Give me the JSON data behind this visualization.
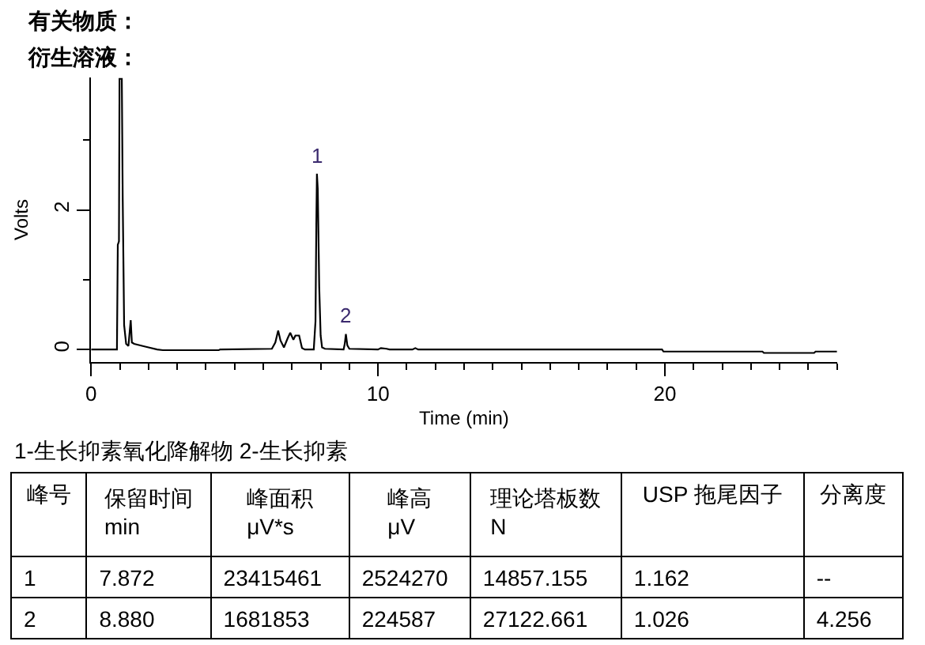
{
  "chart_data": [
    {
      "type": "line",
      "title": "有关物质：",
      "subtitle": "衍生溶液：",
      "xlabel": "Time (min)",
      "ylabel": "Volts",
      "color": "#000000",
      "x": [
        0,
        0.9,
        0.93,
        0.97,
        0.99,
        1.07,
        1.1,
        1.15,
        1.22,
        1.3,
        1.38,
        1.42,
        1.5,
        1.8,
        2.0,
        2.3,
        2.5,
        4.45,
        4.5,
        6.3,
        6.42,
        6.52,
        6.6,
        6.72,
        6.85,
        6.94,
        7.05,
        7.12,
        7.25,
        7.35,
        7.45,
        7.76,
        7.82,
        7.85,
        7.87,
        7.9,
        7.95,
        8.0,
        8.05,
        8.15,
        8.8,
        8.84,
        8.88,
        8.93,
        9.0,
        10.0,
        10.1,
        10.3,
        10.4,
        11.2,
        11.3,
        11.4,
        19.9,
        19.95,
        23.4,
        23.45,
        25.2,
        25.25,
        26.0
      ],
      "values": [
        0,
        0,
        1.5,
        1.55,
        3.88,
        3.88,
        2.2,
        0.35,
        0.08,
        0.05,
        0.42,
        0.1,
        0.08,
        0.05,
        0.03,
        0,
        -0.01,
        -0.01,
        0,
        0.01,
        0.1,
        0.27,
        0.13,
        0.03,
        0.16,
        0.24,
        0.14,
        0.2,
        0.2,
        0.02,
        0,
        0,
        0.4,
        1.8,
        2.52,
        2.3,
        0.9,
        0.2,
        0.03,
        0.01,
        0,
        0.08,
        0.22,
        0.06,
        0.01,
        0,
        0.02,
        0.01,
        0,
        0,
        0.02,
        0,
        0,
        -0.03,
        -0.03,
        -0.05,
        -0.05,
        -0.03,
        -0.03
      ],
      "xlim": [
        0,
        26
      ],
      "xticks": [
        0,
        {
          "value": 1,
          "label": null
        },
        {
          "value": 2,
          "label": null
        },
        {
          "value": 3,
          "label": null
        },
        {
          "value": 4,
          "label": null
        },
        {
          "value": 5,
          "label": null
        },
        {
          "value": 6,
          "label": null
        },
        {
          "value": 7,
          "label": null
        },
        {
          "value": 8,
          "label": null
        },
        {
          "value": 9,
          "label": null
        },
        10,
        {
          "value": 11,
          "label": null
        },
        {
          "value": 12,
          "label": null
        },
        {
          "value": 13,
          "label": null
        },
        {
          "value": 14,
          "label": null
        },
        {
          "value": 15,
          "label": null
        },
        {
          "value": 16,
          "label": null
        },
        {
          "value": 17,
          "label": null
        },
        {
          "value": 18,
          "label": null
        },
        {
          "value": 19,
          "label": null
        },
        20,
        {
          "value": 21,
          "label": null
        },
        {
          "value": 22,
          "label": null
        },
        {
          "value": 23,
          "label": null
        },
        {
          "value": 24,
          "label": null
        },
        {
          "value": 25,
          "label": null
        },
        {
          "value": 26,
          "label": null
        }
      ],
      "ylim": [
        -0.18,
        3.9
      ],
      "yticks": [
        0,
        {
          "value": 1,
          "label": null
        },
        2,
        {
          "value": 3,
          "label": null
        }
      ],
      "annotations": [
        {
          "text": "1",
          "x": 7.87,
          "y": 2.52
        },
        {
          "text": "2",
          "x": 8.88,
          "y": 0.22
        }
      ]
    },
    {
      "type": "other",
      "title": "1-生长抑素氧化降解物 2-生长抑素",
      "categories": [
        "峰号",
        "保留时间\nmin",
        "峰面积\nμV*s",
        "峰高\nμV",
        "理论塔板数\nN",
        "USP 拖尾因子",
        "分离度"
      ],
      "annotations": [
        "1",
        "7.872",
        "23415461",
        "2524270",
        "14857.155",
        "1.162",
        "--",
        "2",
        "8.880",
        "1681853",
        "224587",
        "27122.661",
        "1.026",
        "4.256"
      ]
    }
  ]
}
